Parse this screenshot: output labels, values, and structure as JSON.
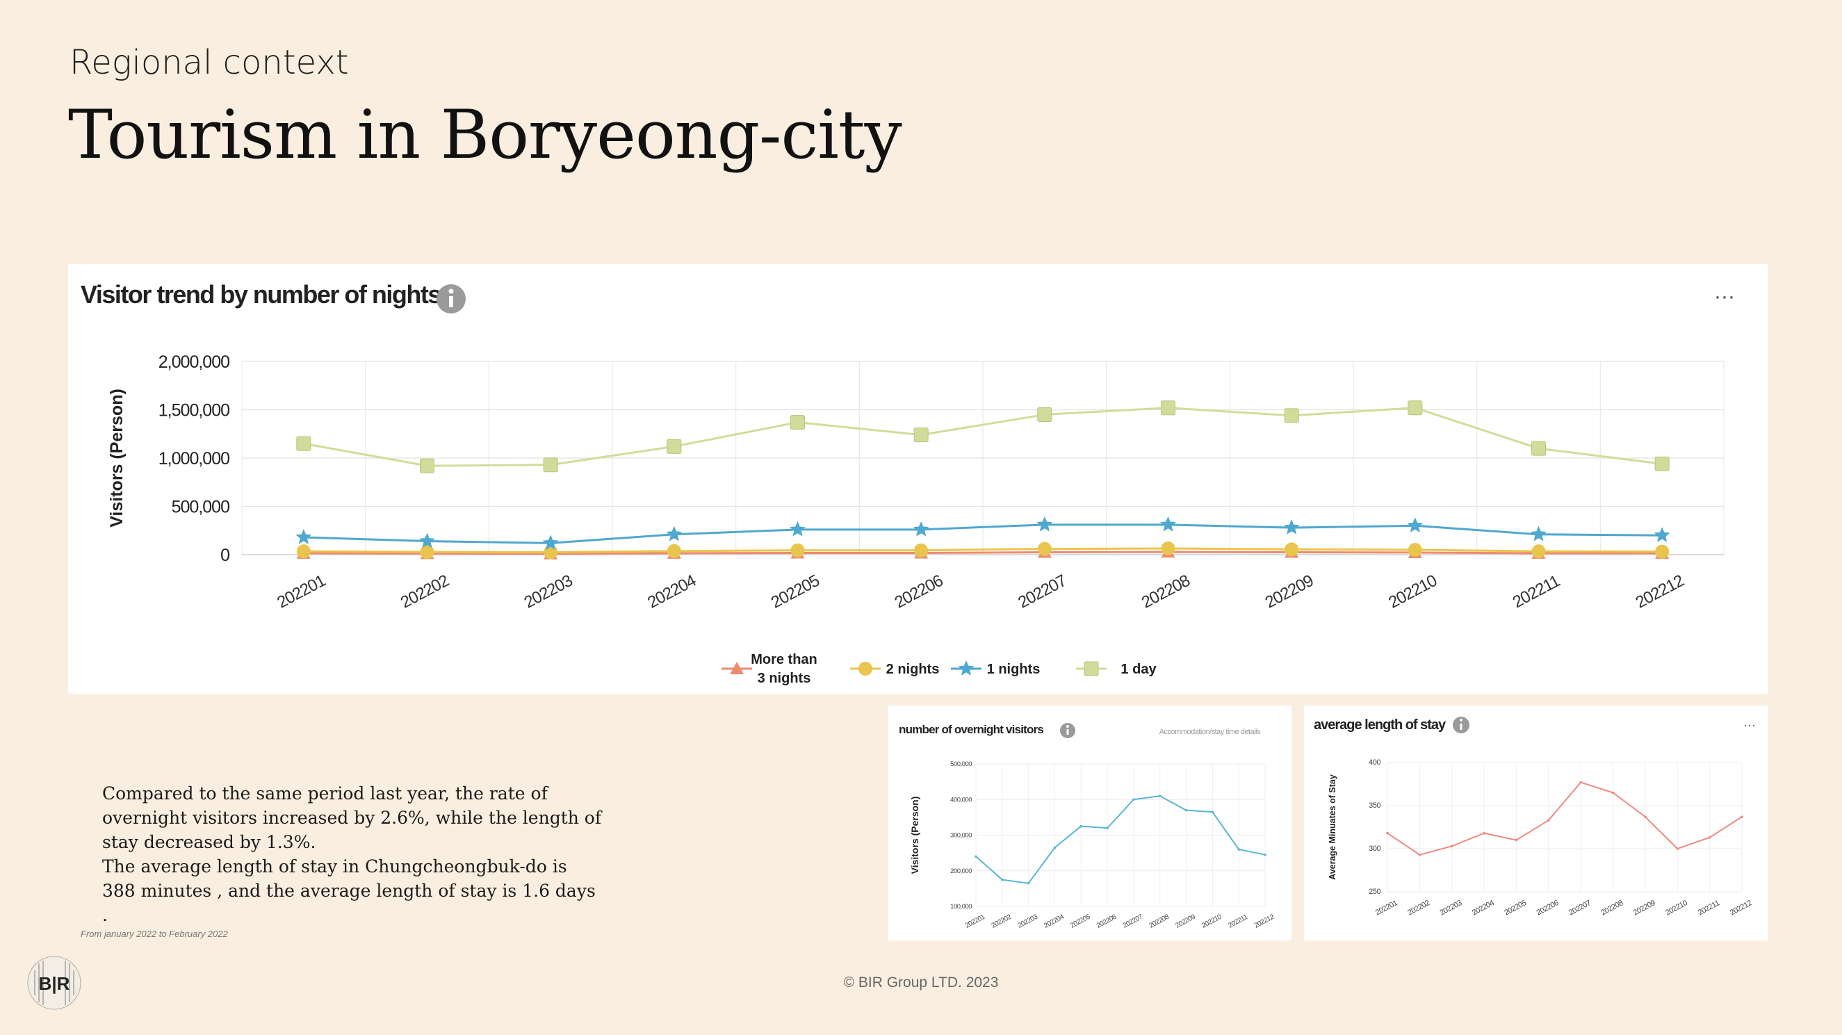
{
  "header": {
    "kicker": "Regional context",
    "title": "Tourism in Boryeong-city"
  },
  "main_chart": {
    "panel_title": "Visitor trend by number of nights",
    "info_icon": "info-icon",
    "menu_icon": "more-icon",
    "menu_label": "···"
  },
  "small_chart_1": {
    "panel_title": "number of overnight visitors",
    "sublink": "Accommodation/stay time details"
  },
  "small_chart_2": {
    "panel_title": "average length of stay",
    "menu_label": "···"
  },
  "body": {
    "paragraph1": "Compared to the same period last year, the rate of overnight visitors increased by 2.6%, while the length of stay decreased by 1.3%.",
    "paragraph2": "The average length of stay in Chungcheongbuk-do is 388 minutes , and the average length of stay is 1.6 days ."
  },
  "footnote": "From january 2022 to February 2022",
  "logo": {
    "text": "B|R",
    "icon": "bir-logo-icon"
  },
  "copyright": "© BIR Group LTD. 2023",
  "chart_data": [
    {
      "type": "line",
      "title": "Visitor trend by number of nights",
      "xlabel": "",
      "ylabel": "Visitors (Person)",
      "ylim": [
        0,
        2000000
      ],
      "yticks": [
        0,
        500000,
        1000000,
        1500000,
        2000000
      ],
      "ytick_labels": [
        "0",
        "500,000",
        "1,000,000",
        "1,500,000",
        "2,000,000"
      ],
      "categories": [
        "202201",
        "202202",
        "202203",
        "202204",
        "202205",
        "202206",
        "202207",
        "202208",
        "202209",
        "202210",
        "202211",
        "202212"
      ],
      "legend_position": "bottom",
      "grid": true,
      "series": [
        {
          "name": "More than\n3 nights",
          "label_lines": [
            "More than",
            "3 nights"
          ],
          "color": "#f08a6e",
          "marker": "triangle",
          "values": [
            15000,
            12000,
            10000,
            15000,
            18000,
            18000,
            25000,
            28000,
            25000,
            22000,
            15000,
            15000
          ]
        },
        {
          "name": "2 nights",
          "label_lines": [
            "2 nights"
          ],
          "color": "#e9c54e",
          "marker": "circle",
          "values": [
            35000,
            28000,
            25000,
            38000,
            45000,
            45000,
            60000,
            65000,
            55000,
            50000,
            35000,
            32000
          ]
        },
        {
          "name": "1 nights",
          "label_lines": [
            "1 nights"
          ],
          "color": "#4ea8cf",
          "marker": "star",
          "values": [
            180000,
            140000,
            120000,
            210000,
            260000,
            260000,
            310000,
            310000,
            280000,
            300000,
            210000,
            200000
          ]
        },
        {
          "name": "1 day",
          "label_lines": [
            "1 day"
          ],
          "color": "#d2dc9a",
          "marker": "square",
          "values": [
            1150000,
            920000,
            930000,
            1120000,
            1370000,
            1240000,
            1450000,
            1520000,
            1440000,
            1520000,
            1100000,
            940000
          ]
        }
      ]
    },
    {
      "type": "line",
      "title": "number of overnight visitors",
      "xlabel": "",
      "ylabel": "Visitors (Person)",
      "ylim": [
        100000,
        500000
      ],
      "yticks": [
        100000,
        200000,
        300000,
        400000,
        500000
      ],
      "ytick_labels": [
        "100,000",
        "200,000",
        "300,000",
        "400,000",
        "500,000"
      ],
      "categories": [
        "202201",
        "202202",
        "202203",
        "202204",
        "202205",
        "202206",
        "202207",
        "202208",
        "202209",
        "202210",
        "202211",
        "202212"
      ],
      "grid": true,
      "series": [
        {
          "color": "#5bb4d6",
          "values": [
            240000,
            175000,
            165000,
            265000,
            325000,
            320000,
            400000,
            410000,
            370000,
            365000,
            260000,
            245000
          ]
        }
      ]
    },
    {
      "type": "line",
      "title": "average length of stay",
      "xlabel": "",
      "ylabel": "Average Minuates of Stay",
      "ylim": [
        250,
        400
      ],
      "yticks": [
        250,
        300,
        350,
        400
      ],
      "ytick_labels": [
        "250",
        "300",
        "350",
        "400"
      ],
      "categories": [
        "202201",
        "202202",
        "202203",
        "202204",
        "202205",
        "202206",
        "202207",
        "202208",
        "202209",
        "202210",
        "202211",
        "202212"
      ],
      "grid": true,
      "series": [
        {
          "color": "#ef8a80",
          "values": [
            318,
            293,
            303,
            318,
            310,
            333,
            377,
            365,
            337,
            300,
            313,
            337
          ]
        }
      ]
    }
  ]
}
